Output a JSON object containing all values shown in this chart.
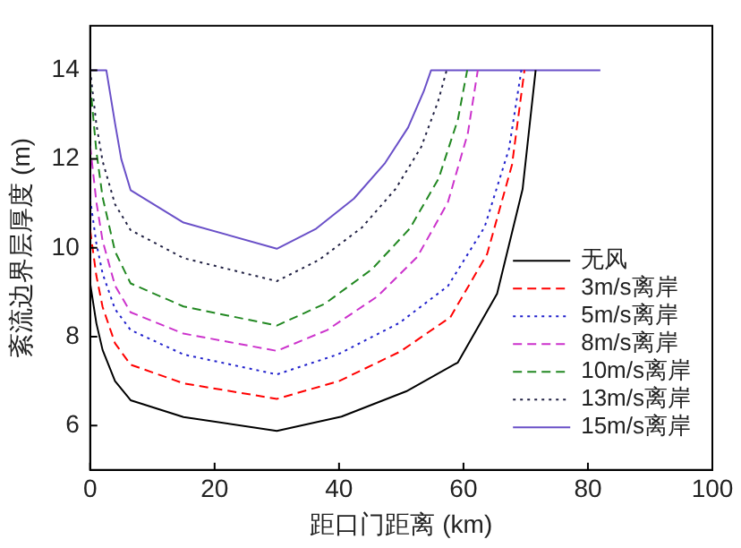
{
  "chart_data": {
    "type": "line",
    "xlabel": "距口门距离 (km)",
    "ylabel": "紊流边界层厚度 (m)",
    "xlim": [
      0,
      100
    ],
    "xticks": [
      0,
      20,
      40,
      60,
      80,
      100
    ],
    "ylim": [
      5,
      15
    ],
    "yticks": [
      6,
      8,
      10,
      12,
      14
    ],
    "grid": false,
    "legend": "bottom right",
    "marker": "none",
    "series": [
      {
        "name": "无风",
        "color": "#000000",
        "line_style": "solid",
        "x": [
          0,
          1,
          2,
          4,
          6.5,
          15,
          30,
          40.4,
          50.8,
          59.1,
          65.4,
          69.5,
          71.6
        ],
        "values": [
          9.2,
          8.3,
          7.7,
          7.0,
          6.57,
          6.19,
          5.88,
          6.2,
          6.77,
          7.42,
          8.97,
          11.32,
          14
        ]
      },
      {
        "name": "3m/s离岸",
        "color": "#ff0000",
        "line_style": "dashed",
        "x": [
          0,
          1,
          2,
          4,
          6.5,
          15,
          30,
          40.0,
          49.9,
          57.9,
          63.8,
          67.8,
          69.8
        ],
        "values": [
          10.4,
          9.37,
          8.67,
          7.85,
          7.37,
          6.95,
          6.6,
          7.0,
          7.67,
          8.44,
          9.86,
          11.87,
          14
        ]
      },
      {
        "name": "5m/s离岸",
        "color": "#2222cc",
        "line_style": "dotted",
        "x": [
          0,
          1,
          2,
          4,
          6.5,
          15,
          30,
          39.8,
          49.7,
          57.5,
          63.4,
          67.3,
          69.3
        ],
        "values": [
          11.1,
          10.1,
          9.42,
          8.62,
          8.15,
          7.6,
          7.15,
          7.6,
          8.31,
          9.14,
          10.47,
          12.22,
          14
        ]
      },
      {
        "name": "8m/s离岸",
        "color": "#cc33cc",
        "line_style": "dashed",
        "x": [
          0,
          1,
          2,
          4,
          6.5,
          15,
          30,
          38.1,
          46.2,
          52.6,
          57.5,
          60.7,
          62.3
        ],
        "values": [
          12.3,
          11.03,
          10.16,
          9.15,
          8.55,
          8.07,
          7.68,
          8.15,
          8.91,
          9.8,
          11.03,
          12.58,
          14
        ]
      },
      {
        "name": "10m/s离岸",
        "color": "#228822",
        "line_style": "dashed",
        "x": [
          0,
          1,
          2,
          4,
          6.5,
          15,
          30,
          37.7,
          45.3,
          51.4,
          56.0,
          59.1,
          60.6
        ],
        "values": [
          13.7,
          12.17,
          11.14,
          9.92,
          9.2,
          8.68,
          8.25,
          8.74,
          9.52,
          10.44,
          11.56,
          12.89,
          14
        ]
      },
      {
        "name": "13m/s离岸",
        "color": "#222244",
        "line_style": "dotted",
        "x": [
          0,
          1,
          2,
          4,
          6.5,
          15,
          30,
          36.8,
          43.7,
          49.1,
          53.2,
          55.9,
          57.3
        ],
        "values": [
          14,
          12.78,
          11.95,
          10.98,
          10.4,
          9.77,
          9.25,
          9.73,
          10.46,
          11.33,
          12.27,
          13.29,
          14
        ]
      },
      {
        "name": "15m/s离岸",
        "color": "#6a50c8",
        "line_style": "solid",
        "x": [
          0,
          2.6,
          4,
          5,
          6.5,
          15,
          30,
          36.2,
          42.4,
          47.4,
          51.1,
          53.6,
          54.8,
          82
        ],
        "values": [
          14,
          14,
          12.8,
          12.0,
          11.3,
          10.57,
          9.98,
          10.42,
          11.11,
          11.91,
          12.71,
          13.52,
          14,
          14
        ]
      }
    ]
  }
}
